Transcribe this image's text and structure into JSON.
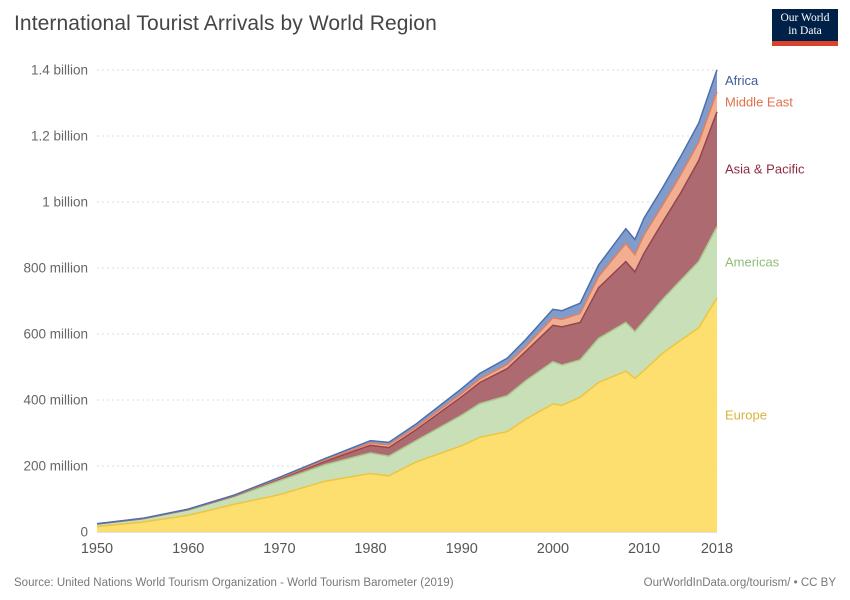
{
  "header": {
    "title": "International Tourist Arrivals by World Region",
    "logo": {
      "line1": "Our World",
      "line2": "in Data",
      "bg_color": "#002147",
      "accent_color": "#d8432b"
    }
  },
  "footer": {
    "source": "Source: United Nations World Tourism Organization - World Tourism Barometer (2019)",
    "license": "OurWorldInData.org/tourism/ • CC BY"
  },
  "chart_data": {
    "type": "area",
    "stacked": true,
    "title": "International Tourist Arrivals by World Region",
    "xlabel": "",
    "ylabel": "",
    "unit": "million arrivals",
    "grid": true,
    "legend_position": "right-inline",
    "xlim": [
      1950,
      2018
    ],
    "ylim": [
      0,
      1400
    ],
    "x_ticks": [
      1950,
      1960,
      1970,
      1980,
      1990,
      2000,
      2010,
      2018
    ],
    "y_ticks": [
      {
        "value": 0,
        "label": "0"
      },
      {
        "value": 200,
        "label": "200 million"
      },
      {
        "value": 400,
        "label": "400 million"
      },
      {
        "value": 600,
        "label": "600 million"
      },
      {
        "value": 800,
        "label": "800 million"
      },
      {
        "value": 1000,
        "label": "1 billion"
      },
      {
        "value": 1200,
        "label": "1.2 billion"
      },
      {
        "value": 1400,
        "label": "1.4 billion"
      }
    ],
    "x": [
      1950,
      1955,
      1960,
      1965,
      1970,
      1975,
      1980,
      1982,
      1985,
      1990,
      1992,
      1995,
      1997,
      2000,
      2001,
      2003,
      2005,
      2008,
      2009,
      2010,
      2012,
      2014,
      2016,
      2018
    ],
    "series": [
      {
        "name": "Europe",
        "color": "#FCDB5F",
        "line_color": "#EDC53F",
        "label_color": "#D9B33C",
        "values": [
          16.8,
          30.0,
          50.4,
          83.7,
          113.0,
          153.9,
          177.3,
          170.0,
          212.0,
          261.5,
          287.0,
          304.1,
          341.6,
          388.0,
          383.8,
          408.6,
          453.0,
          487.3,
          465.5,
          489.4,
          541.1,
          580.2,
          619.1,
          710.0
        ]
      },
      {
        "name": "Americas",
        "color": "#C3DCAF",
        "line_color": "#A8C98E",
        "label_color": "#8FBE77",
        "values": [
          7.5,
          10.0,
          16.7,
          23.2,
          42.3,
          50.0,
          62.3,
          59.7,
          65.1,
          92.8,
          102.0,
          109.0,
          116.2,
          128.2,
          122.1,
          113.1,
          133.3,
          148.0,
          141.7,
          150.4,
          162.7,
          181.9,
          200.9,
          215.7
        ]
      },
      {
        "name": "Asia & Pacific",
        "color": "#A45B62",
        "line_color": "#95454F",
        "label_color": "#8E2C41",
        "values": [
          0.2,
          0.4,
          0.9,
          2.1,
          6.2,
          10.2,
          23.0,
          26.1,
          32.9,
          55.8,
          64.0,
          82.0,
          89.0,
          110.1,
          115.7,
          113.2,
          153.6,
          184.1,
          180.9,
          205.1,
          233.5,
          264.3,
          306.0,
          347.7
        ]
      },
      {
        "name": "Middle East",
        "color": "#F1A584",
        "line_color": "#E2805E",
        "label_color": "#E0714B",
        "values": [
          0.2,
          0.3,
          0.6,
          1.1,
          1.9,
          3.5,
          7.1,
          8.1,
          7.5,
          9.6,
          11.0,
          12.7,
          14.3,
          22.4,
          22.5,
          27.6,
          33.7,
          55.2,
          52.3,
          56.1,
          51.7,
          55.3,
          55.6,
          60.5
        ]
      },
      {
        "name": "Africa",
        "color": "#7390C5",
        "line_color": "#4C6FAE",
        "label_color": "#3D5C9E",
        "values": [
          0.5,
          0.7,
          0.8,
          1.4,
          2.4,
          4.7,
          7.2,
          7.6,
          9.7,
          14.8,
          16.5,
          18.9,
          21.2,
          26.2,
          26.6,
          30.8,
          34.8,
          44.4,
          45.9,
          50.4,
          52.4,
          55.3,
          57.8,
          67.1
        ]
      }
    ]
  }
}
